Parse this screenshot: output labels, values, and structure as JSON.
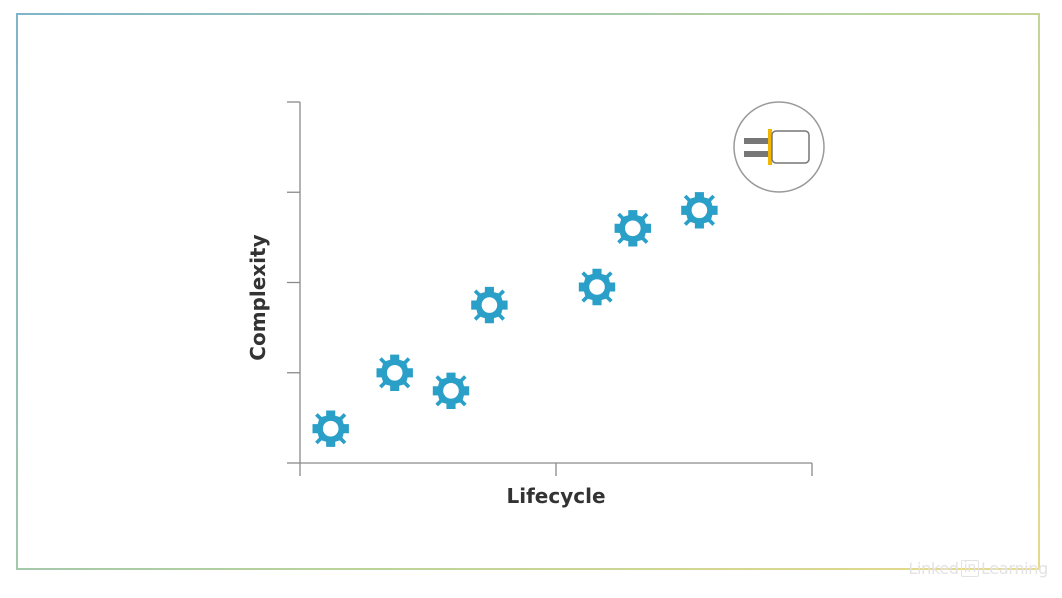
{
  "chart_data": {
    "type": "scatter",
    "xlabel": "Lifecycle",
    "ylabel": "Complexity",
    "xlim": [
      0,
      10
    ],
    "ylim": [
      0,
      4
    ],
    "x_ticks": [
      0,
      5,
      10
    ],
    "y_ticks": [
      0,
      1,
      2,
      3,
      4
    ],
    "grid": false,
    "marker": "gear",
    "marker_color": "#2a9fc8",
    "series": [
      {
        "points": [
          {
            "x": 0.6,
            "y": 0.38
          },
          {
            "x": 1.85,
            "y": 1.0
          },
          {
            "x": 2.95,
            "y": 0.8
          },
          {
            "x": 3.7,
            "y": 1.75
          },
          {
            "x": 5.8,
            "y": 1.95
          },
          {
            "x": 6.5,
            "y": 2.6
          },
          {
            "x": 7.8,
            "y": 2.8
          }
        ]
      }
    ],
    "annotation_icon": "plug-in-socket-icon"
  },
  "watermark": {
    "pre": "Linked",
    "box": "in",
    "post": "Learning"
  }
}
